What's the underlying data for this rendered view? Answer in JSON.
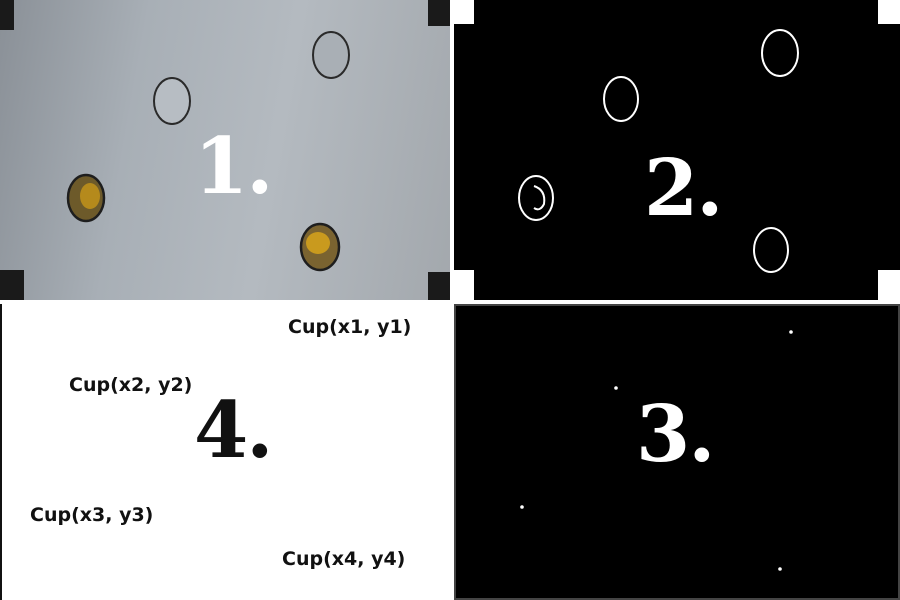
{
  "panels": {
    "photo": {
      "number": "1."
    },
    "edges": {
      "number": "2."
    },
    "centers": {
      "number": "3."
    },
    "labels": {
      "number": "4."
    }
  },
  "cup_labels": [
    "Cup(x1, y1)",
    "Cup(x2, y2)",
    "Cup(x3, y3)",
    "Cup(x4, y4)"
  ],
  "colors": {
    "photo_background": "#a8afb6",
    "cup_fill_yellow": "#b58a1c",
    "edge_color": "#ffffff",
    "panel_dark": "#000000",
    "panel_light": "#ffffff"
  }
}
